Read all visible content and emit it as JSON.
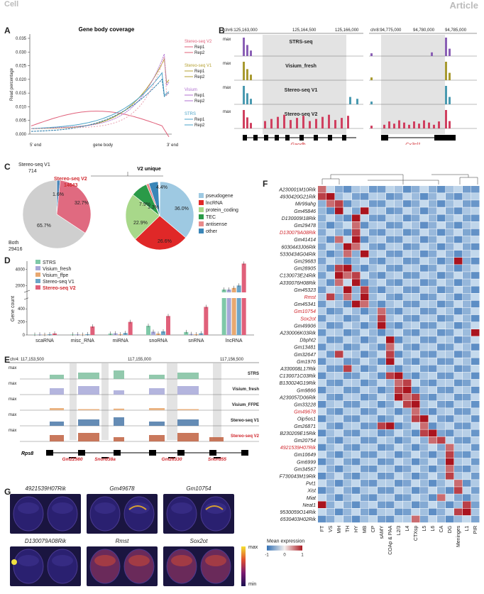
{
  "header": {
    "journal": "Cell",
    "article": "Article"
  },
  "panels": {
    "A": "A",
    "B": "B",
    "C": "C",
    "D": "D",
    "E": "E",
    "F": "F",
    "G": "G"
  },
  "panelA": {
    "title": "Gene body coverage",
    "ylabel": "Read percentage",
    "xticks": [
      "5' end",
      "gene body",
      "3' end"
    ],
    "yticks": [
      "0.000",
      "0.005",
      "0.010",
      "0.015",
      "0.020",
      "0.025",
      "0.030",
      "0.035"
    ],
    "legend": [
      {
        "group": "Stereo-seq V2",
        "color": "#e0607a",
        "items": [
          "Rep1",
          "Rep2"
        ]
      },
      {
        "group": "Stereo-seq V1",
        "color": "#b5a030",
        "items": [
          "Rep1",
          "Rep2"
        ]
      },
      {
        "group": "Visium",
        "color": "#b070d0",
        "items": [
          "Rep1",
          "Rep2"
        ]
      },
      {
        "group": "STRS",
        "color": "#4aa3c8",
        "items": [
          "Rep1",
          "Rep2"
        ]
      }
    ]
  },
  "panelB": {
    "coordsLeft": [
      "chr6:125,163,000",
      "125,164,500",
      "125,166,000"
    ],
    "coordsRight": [
      "chr8:94,775,000",
      "94,780,000",
      "94,785,000"
    ],
    "tracks": [
      {
        "name": "STRS-seq",
        "color": "#8a5fb5"
      },
      {
        "name": "Visium_fresh",
        "color": "#a89a30"
      },
      {
        "name": "Stereo-seq V1",
        "color": "#4a9ab0"
      },
      {
        "name": "Stereo-seq V2",
        "color": "#d04060"
      }
    ],
    "max": "max",
    "genes": [
      "Gapdh",
      "Cx3cl1"
    ]
  },
  "panelC": {
    "pie1": {
      "labels": [
        "Stereo-seq V1",
        "714",
        "Stereo-seq V2",
        "14643",
        "Both",
        "29416"
      ],
      "pcts": [
        "1.6%",
        "32.7%",
        "65.7%"
      ]
    },
    "pie2": {
      "title": "V2 unique",
      "pcts": [
        "36.0%",
        "26.6%",
        "22.9%",
        "7.9%",
        "1.3%",
        "4.4%"
      ]
    },
    "legend": [
      {
        "label": "pseudogene",
        "color": "#9ec9e2"
      },
      {
        "label": "lncRNA",
        "color": "#e02828"
      },
      {
        "label": "protein_coding",
        "color": "#a8d88a"
      },
      {
        "label": "TEC",
        "color": "#2a9a48"
      },
      {
        "label": "antisense",
        "color": "#e88a8a"
      },
      {
        "label": "other",
        "color": "#3a86b8"
      }
    ]
  },
  "chart_data": {
    "type": "bar",
    "ylabel": "Gene count",
    "categories": [
      "scaRNA",
      "misc_RNA",
      "miRNA",
      "snoRNA",
      "snRNA",
      "lncRNA"
    ],
    "yticks_top": [
      "2000",
      "4000"
    ],
    "yticks_bottom": [
      "0",
      "200",
      "400"
    ],
    "series": [
      {
        "name": "STRS",
        "color": "#7fc9a8",
        "values": [
          5,
          8,
          20,
          140,
          45,
          850
        ]
      },
      {
        "name": "Visium_fresh",
        "color": "#a7a8d8",
        "values": [
          8,
          10,
          25,
          50,
          15,
          1100
        ]
      },
      {
        "name": "Visium_ffpe",
        "color": "#e8a870",
        "values": [
          3,
          5,
          10,
          20,
          10,
          1700
        ]
      },
      {
        "name": "Stereo-seq V1",
        "color": "#6ba6c8",
        "values": [
          10,
          12,
          30,
          55,
          25,
          2000
        ]
      },
      {
        "name": "Stereo-seq V2",
        "color": "#e0607a",
        "values": [
          22,
          130,
          200,
          290,
          430,
          4700
        ]
      }
    ]
  },
  "panelE": {
    "coords": [
      "chr4: 117,153,500",
      "117,155,000",
      "117,156,500"
    ],
    "tracks": [
      "STRS",
      "Visium_fresh",
      "Visium_FFPE",
      "Stereo-seq V1",
      "Stereo-seq V2"
    ],
    "colors": [
      "#7fbf9f",
      "#a7a8d8",
      "#e8a870",
      "#4a78a8",
      "#c06040"
    ],
    "max": "max",
    "genes": [
      "Rps8",
      "Gm22980",
      "Snord38a",
      "Gm26330",
      "Snord55"
    ]
  },
  "panelF": {
    "rows": [
      "A230001M10Rik",
      "4930420G21Rik",
      "Mir99ahg",
      "Gm45846",
      "D130009I18Rik",
      "Gm29478",
      "D130079A08Rik",
      "Gm41414",
      "6030443J06Rik",
      "5330434G04Rik",
      "Gm29683",
      "Gm28905",
      "C130073E24Rik",
      "A330076H08Rik",
      "Gm45323",
      "Rmst",
      "Gm45341",
      "Gm10754",
      "Sox2ot",
      "Gm49906",
      "A230006K03Rik",
      "Dbpht2",
      "Gm13481",
      "Gm32647",
      "Gm1976",
      "A330008L17Rik",
      "C130071C03Rik",
      "B130024G19Rik",
      "Gm9866",
      "A230057D06Rik",
      "Gm33228",
      "Gm49678",
      "Oip5os1",
      "Gm26871",
      "B230209E15Rik",
      "Gm20754",
      "4921539H07Rik",
      "Gm10649",
      "Gm6999",
      "Gm34567",
      "F730043M19Rik",
      "Pvt1",
      "Xist",
      "Miat",
      "Neat1",
      "9530059O14Rik",
      "6530403H02Rik"
    ],
    "redRows": [
      "D130079A08Rik",
      "Rmst",
      "Gm10754",
      "Sox2ot",
      "Gm49678",
      "4921539H07Rik"
    ],
    "cols": [
      "FT",
      "VS",
      "MH",
      "TH",
      "HY",
      "MB",
      "CP",
      "sAMY",
      "COAp & PAA",
      "L2/3",
      "L4",
      "CTXsp",
      "L5",
      "L6",
      "CA",
      "DG",
      "Meninges",
      "L1",
      "PIR"
    ],
    "legendTitle": "Mean expression",
    "legendTicks": [
      "-1",
      "0",
      "1"
    ]
  },
  "panelG": {
    "genes": [
      "4921539H07Rik",
      "Gm49678",
      "Gm10754",
      "D130079A08Rik",
      "Rmst",
      "Sox2ot"
    ],
    "scale": [
      "max",
      "min"
    ]
  }
}
